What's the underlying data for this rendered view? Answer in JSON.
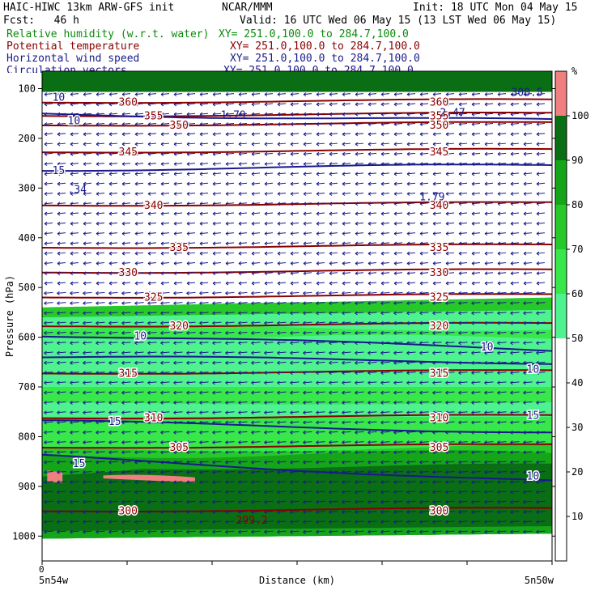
{
  "header": {
    "model": "HAIC-HIWC 13km ARW-GFS init",
    "org": "NCAR/MMM",
    "init": "Init: 18 UTC Mon 04 May 15",
    "fcst": "Fcst:   46 h",
    "valid": "Valid: 16 UTC Wed 06 May 15 (13 LST Wed 06 May 15)",
    "fields": [
      {
        "name": "Relative humidity (w.r.t. water)",
        "xy": "XY= 251.0,100.0 to 284.7,100.0",
        "color": "#0a8a0a"
      },
      {
        "name": "Potential temperature",
        "xy": "XY= 251.0,100.0 to 284.7,100.0",
        "color": "#8b0000"
      },
      {
        "name": "Horizontal wind speed",
        "xy": "XY= 251.0,100.0 to 284.7,100.0",
        "color": "#1a1a8c"
      },
      {
        "name": "Circulation vectors",
        "xy": "XY= 251.0,100.0 to 284.7,100.0",
        "color": "#1a1a8c"
      }
    ]
  },
  "chart_data": {
    "type": "heatmap",
    "ylabel": "Pressure (hPa)",
    "xlabel": "Distance (km)",
    "x_tick": "0",
    "x_left_label": "5n54w",
    "x_right_label": "5n50w",
    "y_ticks": [
      100,
      200,
      300,
      400,
      500,
      600,
      700,
      800,
      900,
      1000
    ],
    "ylim": [
      1050,
      65
    ],
    "colorbar": {
      "unit": "%",
      "ticks": [
        10,
        20,
        30,
        40,
        50,
        60,
        70,
        80,
        90,
        100
      ],
      "bins": [
        {
          "from": 50,
          "to": 60,
          "color": "#4ef28e"
        },
        {
          "from": 60,
          "to": 70,
          "color": "#38e84a"
        },
        {
          "from": 70,
          "to": 80,
          "color": "#27c92a"
        },
        {
          "from": 80,
          "to": 90,
          "color": "#15a519"
        },
        {
          "from": 90,
          "to": 100,
          "color": "#0a6e14"
        },
        {
          "from": 100,
          "to": 110,
          "color": "#f08080"
        }
      ]
    },
    "theta_contours": [
      {
        "label": "360",
        "p": 128
      },
      {
        "label": "355",
        "p": 155
      },
      {
        "label": "350",
        "p": 174
      },
      {
        "label": "345",
        "p": 228
      },
      {
        "label": "340",
        "p": 335
      },
      {
        "label": "335",
        "p": 420
      },
      {
        "label": "330",
        "p": 470
      },
      {
        "label": "325",
        "p": 520
      },
      {
        "label": "320",
        "p": 578
      },
      {
        "label": "315",
        "p": 673
      },
      {
        "label": "310",
        "p": 763
      },
      {
        "label": "305",
        "p": 822
      },
      {
        "label": "300",
        "p": 950
      }
    ],
    "wind_labels": [
      "10",
      "15",
      "10",
      "10",
      "10",
      "15",
      "15",
      "15",
      "10",
      "10"
    ],
    "extrema": [
      {
        "label": "H",
        "value": "1.79"
      },
      {
        "label": "L",
        "value": ".34"
      },
      {
        "label": "L",
        "value": "1.79"
      },
      {
        "label": "H",
        "value": "2.47"
      },
      {
        "label": "L",
        "value": "299.2"
      },
      {
        "label": "H",
        "value": "300.5"
      }
    ]
  }
}
